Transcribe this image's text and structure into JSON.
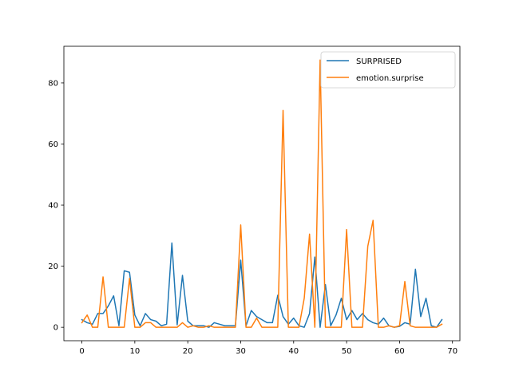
{
  "chart_data": {
    "type": "line",
    "title": "",
    "xlabel": "",
    "ylabel": "",
    "xlim": [
      -3.4,
      71.4
    ],
    "ylim": [
      -4.4,
      92.0
    ],
    "xticks": [
      0,
      10,
      20,
      30,
      40,
      50,
      60,
      70
    ],
    "yticks": [
      0,
      20,
      40,
      60,
      80
    ],
    "xtick_labels": [
      "0",
      "10",
      "20",
      "30",
      "40",
      "50",
      "60",
      "70"
    ],
    "ytick_labels": [
      "0",
      "20",
      "40",
      "60",
      "80"
    ],
    "grid": false,
    "legend_position": "top-right",
    "x": [
      0,
      1,
      2,
      3,
      4,
      5,
      6,
      7,
      8,
      9,
      10,
      11,
      12,
      13,
      14,
      15,
      16,
      17,
      18,
      19,
      20,
      21,
      22,
      23,
      24,
      25,
      26,
      27,
      28,
      29,
      30,
      31,
      32,
      33,
      34,
      35,
      36,
      37,
      38,
      39,
      40,
      41,
      42,
      43,
      44,
      45,
      46,
      47,
      48,
      49,
      50,
      51,
      52,
      53,
      54,
      55,
      56,
      57,
      58,
      59,
      60,
      61,
      62,
      63,
      64,
      65,
      66,
      67,
      68
    ],
    "series": [
      {
        "name": "SURPRISED",
        "color": "#1f77b4",
        "values": [
          2.5,
          1.5,
          1.0,
          4.5,
          4.5,
          7.0,
          10.3,
          0.5,
          18.5,
          18.0,
          4.0,
          0.5,
          4.5,
          2.5,
          2.0,
          0.5,
          1.0,
          27.6,
          0.8,
          17.0,
          2.0,
          0.5,
          0.5,
          0.5,
          0.0,
          1.5,
          1.0,
          0.5,
          0.5,
          0.5,
          22.0,
          0.5,
          5.5,
          3.5,
          2.5,
          1.5,
          1.5,
          10.5,
          3.5,
          1.0,
          3.0,
          0.5,
          0.0,
          4.5,
          23.0,
          0.0,
          14.0,
          0.5,
          4.0,
          9.5,
          2.5,
          5.5,
          2.5,
          4.5,
          2.5,
          1.5,
          1.0,
          3.0,
          0.5,
          0.0,
          0.3,
          1.5,
          1.0,
          19.0,
          3.5,
          9.5,
          0.5,
          0.0,
          2.5
        ]
      },
      {
        "name": "emotion.surprise",
        "color": "#ff7f0e",
        "values": [
          1.5,
          4.0,
          0.0,
          0.0,
          16.5,
          0.0,
          0.0,
          0.0,
          0.0,
          16.0,
          0.0,
          0.0,
          1.5,
          1.5,
          0.0,
          0.0,
          0.0,
          0.0,
          0.0,
          1.5,
          0.0,
          0.5,
          0.0,
          0.0,
          0.5,
          0.0,
          0.0,
          0.0,
          0.0,
          0.0,
          33.5,
          0.0,
          0.0,
          3.0,
          0.0,
          0.0,
          0.0,
          0.0,
          71.0,
          0.0,
          0.0,
          0.0,
          9.5,
          30.5,
          0.0,
          87.5,
          0.0,
          0.0,
          0.0,
          0.0,
          32.0,
          0.0,
          0.0,
          0.0,
          26.5,
          35.0,
          0.0,
          0.0,
          0.5,
          0.0,
          0.5,
          15.0,
          0.5,
          0.0,
          0.0,
          0.0,
          0.0,
          0.0,
          1.0
        ]
      }
    ]
  }
}
